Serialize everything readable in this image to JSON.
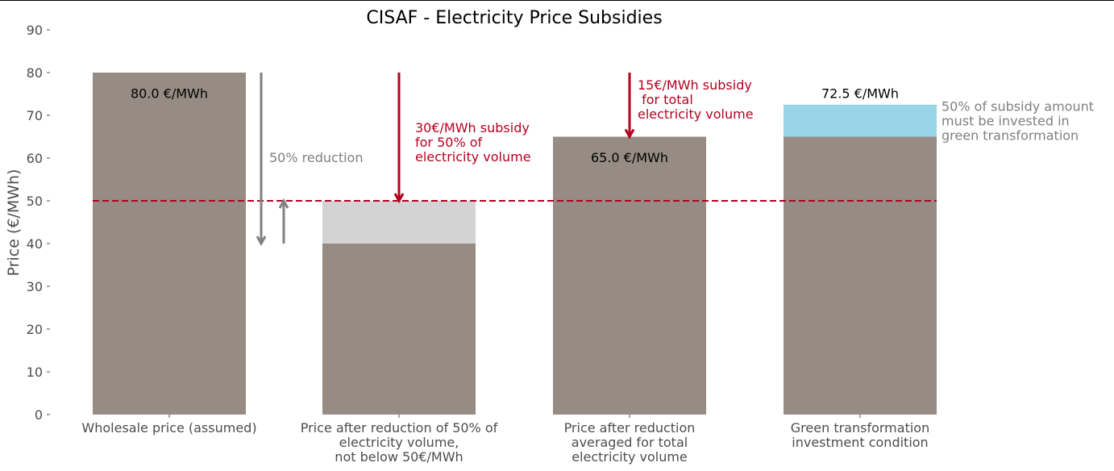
{
  "chart_data": {
    "type": "bar",
    "title": "CISAF - Electricity Price Subsidies",
    "ylabel": "Price (€/MWh)",
    "xlabel": "",
    "ylim": [
      0,
      90
    ],
    "yticks": [
      "0",
      "10",
      "20",
      "30",
      "40",
      "50",
      "60",
      "70",
      "80",
      "90"
    ],
    "grid": false,
    "categories": [
      "Wholesale price (assumed)",
      "Price after reduction of 50% of\nelectricity volume,\nnot below 50€/MWh",
      "Price after reduction\naveraged for total\nelectricity volume",
      "Green transformation\ninvestment condition"
    ],
    "series": [
      {
        "values": [
          80,
          40,
          65,
          65
        ],
        "color": "#968c83"
      },
      {
        "values": [
          0,
          10,
          0,
          7.5
        ],
        "colors": [
          "#968c83",
          "#d3d3d3",
          "#968c83",
          "#99d4e8"
        ]
      }
    ],
    "bar_labels": [
      {
        "index": 0,
        "y": 75,
        "text": "80.0 €/MWh"
      },
      {
        "index": 2,
        "y": 60,
        "text": "65.0 €/MWh"
      },
      {
        "index": 3,
        "y": 75,
        "text": "72.5 €/MWh"
      }
    ],
    "reference_line": {
      "y": 50,
      "style": "dashed",
      "color": "#b5001f"
    },
    "annotations": [
      {
        "kind": "gray-text",
        "after_index": 0,
        "y": 60,
        "text": "50% reduction"
      },
      {
        "kind": "red-text",
        "at_index": 1,
        "y": 67,
        "text": "30€/MWh subsidy\nfor 50% of\nelectricity volume"
      },
      {
        "kind": "red-text",
        "at_index": 2,
        "y": 77,
        "text": "15€/MWh subsidy\n for total\nelectricity volume"
      },
      {
        "kind": "gray-text",
        "at_index": 3,
        "y": 72,
        "text": "50% of subsidy amount\nmust be invested in\ngreen transformation"
      }
    ],
    "arrows": [
      {
        "color": "#808080",
        "from": 80,
        "to": 40
      },
      {
        "color": "#808080",
        "from": 40,
        "to": 50
      },
      {
        "color": "#b5001f",
        "from": 80,
        "to": 50
      },
      {
        "color": "#b5001f",
        "from": 80,
        "to": 65
      }
    ],
    "colors": {
      "base": "#968c83",
      "removed": "#d3d3d3",
      "green": "#99d4e8",
      "red": "#b5001f",
      "gray": "#808080"
    }
  }
}
